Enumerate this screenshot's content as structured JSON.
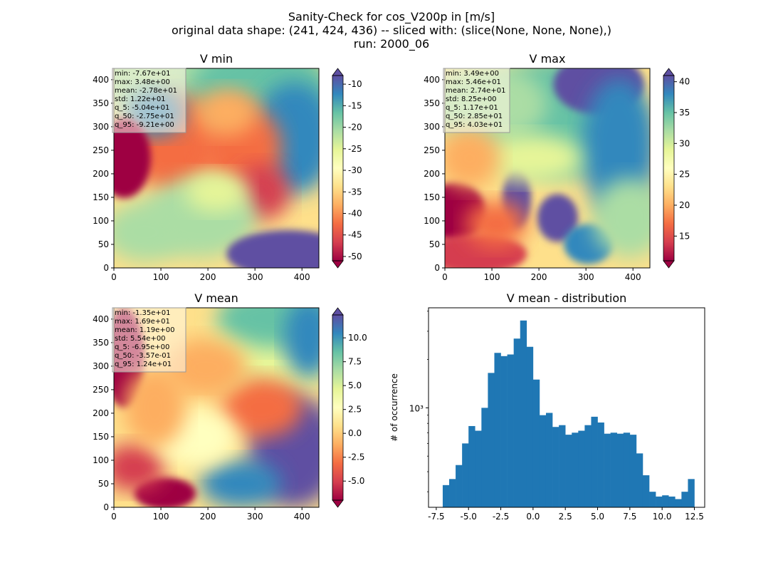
{
  "figure": {
    "title_lines": [
      "Sanity-Check for cos_V200p in [m/s]",
      "original data shape: (241, 424, 436) -- sliced with: (slice(None, None, None),)",
      "run: 2000_06"
    ]
  },
  "chart_data": [
    {
      "type": "heatmap",
      "title": "V min",
      "colormap": "Spectral",
      "xlim": [
        0,
        436
      ],
      "ylim": [
        0,
        424
      ],
      "xticks": [
        "0",
        "100",
        "200",
        "300",
        "400"
      ],
      "yticks": [
        "0",
        "50",
        "100",
        "150",
        "200",
        "250",
        "300",
        "350",
        "400"
      ],
      "colorbar": {
        "vmin": -51,
        "vmax": -8,
        "ticks": [
          "-10",
          "-15",
          "-20",
          "-25",
          "-30",
          "-35",
          "-40",
          "-45",
          "-50"
        ],
        "extend": "both"
      },
      "stats": [
        "min: -7.67e+01",
        "max: 3.48e+00",
        "mean: -2.78e+01",
        "std: 1.22e+01",
        "q_5: -5.04e+01",
        "q_50: -2.75e+01",
        "q_95: -9.21e+00"
      ]
    },
    {
      "type": "heatmap",
      "title": "V max",
      "colormap": "Spectral",
      "xlim": [
        0,
        436
      ],
      "ylim": [
        0,
        424
      ],
      "xticks": [
        "0",
        "100",
        "200",
        "300",
        "400"
      ],
      "yticks": [
        "0",
        "50",
        "100",
        "150",
        "200",
        "250",
        "300",
        "350",
        "400"
      ],
      "colorbar": {
        "vmin": 11,
        "vmax": 41,
        "ticks": [
          "15",
          "20",
          "25",
          "30",
          "35",
          "40"
        ],
        "extend": "both"
      },
      "stats": [
        "min: 3.49e+00",
        "max: 5.46e+01",
        "mean: 2.74e+01",
        "std: 8.25e+00",
        "q_5: 1.17e+01",
        "q_50: 2.85e+01",
        "q_95: 4.03e+01"
      ]
    },
    {
      "type": "heatmap",
      "title": "V mean",
      "colormap": "Spectral",
      "xlim": [
        0,
        436
      ],
      "ylim": [
        0,
        424
      ],
      "xticks": [
        "0",
        "100",
        "200",
        "300",
        "400"
      ],
      "yticks": [
        "0",
        "50",
        "100",
        "150",
        "200",
        "250",
        "300",
        "350",
        "400"
      ],
      "colorbar": {
        "vmin": -7,
        "vmax": 12.4,
        "ticks": [
          "-5.0",
          "-2.5",
          "0.0",
          "2.5",
          "5.0",
          "7.5",
          "10.0"
        ],
        "extend": "both"
      },
      "stats": [
        "min: -1.35e+01",
        "max: 1.69e+01",
        "mean: 1.19e+00",
        "std: 5.54e+00",
        "q_5: -6.95e+00",
        "q_50: -3.57e-01",
        "q_95: 1.24e+01"
      ]
    },
    {
      "type": "bar",
      "title": "V mean - distribution",
      "xlabel": "",
      "ylabel": "# of occurrence",
      "log_y": true,
      "xlim": [
        -8.1,
        13.3
      ],
      "ylim": [
        240,
        4200
      ],
      "xticks": [
        "-7.5",
        "-5.0",
        "-2.5",
        "0.0",
        "2.5",
        "5.0",
        "7.5",
        "10.0",
        "12.5"
      ],
      "ytick_labels": [
        "10³"
      ],
      "bar_color": "#1f77b4",
      "bin_edges_range": [
        -7.0,
        12.4
      ],
      "bins": [
        [
          -7.0,
          330
        ],
        [
          -6.5,
          360
        ],
        [
          -6.0,
          440
        ],
        [
          -5.5,
          600
        ],
        [
          -5.0,
          770
        ],
        [
          -4.5,
          720
        ],
        [
          -4.0,
          1000
        ],
        [
          -3.5,
          1650
        ],
        [
          -3.0,
          2200
        ],
        [
          -2.5,
          2100
        ],
        [
          -2.0,
          2150
        ],
        [
          -1.5,
          2700
        ],
        [
          -1.0,
          3500
        ],
        [
          -0.5,
          2400
        ],
        [
          0.0,
          1500
        ],
        [
          0.5,
          900
        ],
        [
          1.0,
          930
        ],
        [
          1.5,
          760
        ],
        [
          2.0,
          780
        ],
        [
          2.5,
          680
        ],
        [
          3.0,
          700
        ],
        [
          3.5,
          720
        ],
        [
          4.0,
          780
        ],
        [
          4.5,
          880
        ],
        [
          5.0,
          810
        ],
        [
          5.5,
          690
        ],
        [
          6.0,
          700
        ],
        [
          6.5,
          690
        ],
        [
          7.0,
          700
        ],
        [
          7.5,
          680
        ],
        [
          8.0,
          520
        ],
        [
          8.5,
          380
        ],
        [
          9.0,
          300
        ],
        [
          9.5,
          280
        ],
        [
          10.0,
          285
        ],
        [
          10.5,
          280
        ],
        [
          11.0,
          270
        ],
        [
          11.5,
          300
        ],
        [
          12.0,
          360
        ]
      ]
    }
  ]
}
